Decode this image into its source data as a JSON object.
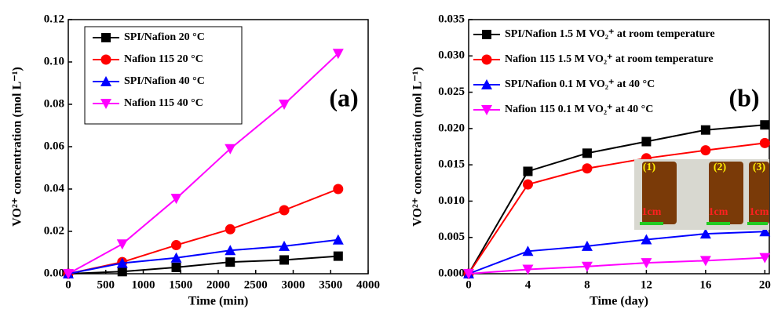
{
  "chart_data": [
    {
      "type": "line",
      "annotation": "(a)",
      "x_label": "Time (min)",
      "y_label": "VO²⁺ concentration (mol L⁻¹)",
      "x": [
        0,
        720,
        1440,
        2160,
        2880,
        3600
      ],
      "xlim": [
        0,
        4000
      ],
      "xticks": [
        0,
        500,
        1000,
        1500,
        2000,
        2500,
        3000,
        3500,
        4000
      ],
      "ylim": [
        0,
        0.12
      ],
      "yticks": [
        {
          "value": 0,
          "label": "0.00"
        },
        {
          "value": 0.02,
          "label": "0.02"
        },
        {
          "value": 0.04,
          "label": "0.04"
        },
        {
          "value": 0.06,
          "label": "0.06"
        },
        {
          "value": 0.08,
          "label": "0.08"
        },
        {
          "value": 0.1,
          "label": "0.10"
        },
        0.12
      ],
      "legend": "upper left",
      "series": [
        {
          "name": "SPI/Nafion 20 °C",
          "color": "#000000",
          "marker": "square",
          "values": [
            0,
            0.001,
            0.003,
            0.0055,
            0.0065,
            0.0083
          ]
        },
        {
          "name": "Nafion 115 20 °C",
          "color": "#ff0000",
          "marker": "circle",
          "values": [
            0,
            0.0055,
            0.0135,
            0.021,
            0.03,
            0.04
          ]
        },
        {
          "name": "SPI/Nafion 40 °C",
          "color": "#0000ff",
          "marker": "triangle",
          "values": [
            0,
            0.005,
            0.0075,
            0.011,
            0.013,
            0.016
          ]
        },
        {
          "name": "Nafion 115  40 °C",
          "color": "#ff00ff",
          "marker": "triangle-down",
          "values": [
            0,
            0.014,
            0.0355,
            0.059,
            0.08,
            0.104
          ]
        }
      ]
    },
    {
      "type": "line",
      "annotation": "(b)",
      "x_label": "Time (day)",
      "y_label": "VO²⁺ concentration (mol L⁻¹)",
      "x": [
        0,
        4,
        8,
        12,
        16,
        20
      ],
      "xlim": [
        0,
        20.3
      ],
      "xticks": [
        0,
        4,
        8,
        12,
        16,
        20
      ],
      "ylim": [
        0,
        0.035
      ],
      "yticks": [
        {
          "value": 0,
          "label": "0.000"
        },
        {
          "value": 0.005,
          "label": "0.005"
        },
        {
          "value": 0.01,
          "label": "0.010"
        },
        {
          "value": 0.015,
          "label": "0.015"
        },
        {
          "value": 0.02,
          "label": "0.020"
        },
        {
          "value": 0.025,
          "label": "0.025"
        },
        {
          "value": 0.03,
          "label": "0.030"
        },
        0.035
      ],
      "legend": "upper left",
      "inset": {
        "labels": [
          "(1)",
          "(2)",
          "(3)"
        ],
        "scale_label": "1cm"
      },
      "series": [
        {
          "name": "SPI/Nafion 1.5 M VO₂⁺ at room temperature",
          "color": "#000000",
          "marker": "square",
          "values": [
            0,
            0.0141,
            0.0166,
            0.0182,
            0.0198,
            0.0205
          ]
        },
        {
          "name": "Nafion 115 1.5 M VO₂⁺ at room temperature",
          "color": "#ff0000",
          "marker": "circle",
          "values": [
            0,
            0.0123,
            0.0145,
            0.0159,
            0.017,
            0.018
          ]
        },
        {
          "name": "SPI/Nafion 0.1 M VO₂⁺ at 40 °C",
          "color": "#0000ff",
          "marker": "triangle",
          "values": [
            0,
            0.0031,
            0.0038,
            0.0047,
            0.0055,
            0.0058
          ]
        },
        {
          "name": "Nafion 115 0.1 M VO₂⁺ at 40 °C",
          "color": "#ff00ff",
          "marker": "triangle-down",
          "values": [
            0,
            0.0006,
            0.001,
            0.0015,
            0.0018,
            0.0022
          ]
        }
      ]
    }
  ]
}
